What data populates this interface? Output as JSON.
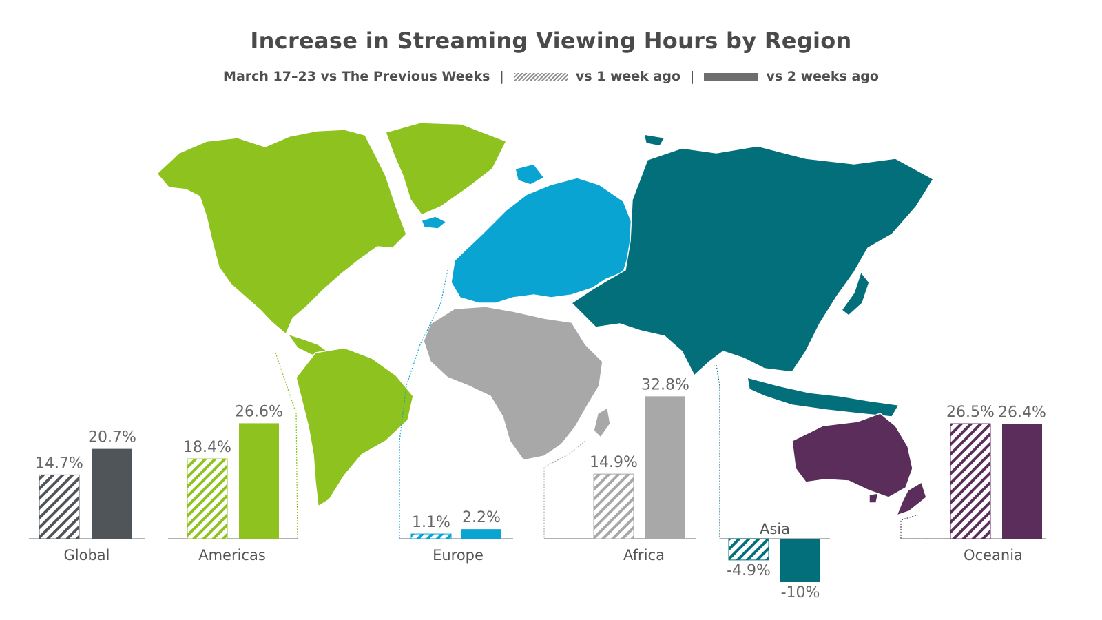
{
  "header": {
    "title": "Increase in Streaming Viewing Hours by Region",
    "subtitle": "March 17–23 vs The Previous Weeks",
    "separator": "|",
    "legend_1wk": "vs 1 week ago",
    "legend_2wk": "vs 2 weeks ago"
  },
  "chart_data": {
    "type": "bar",
    "unit": "%",
    "categories": [
      "Global",
      "Americas",
      "Europe",
      "Africa",
      "Asia",
      "Oceania"
    ],
    "series": [
      {
        "name": "vs 1 week ago",
        "values": [
          14.7,
          18.4,
          1.1,
          14.9,
          -4.9,
          26.5
        ],
        "labels": [
          "14.7%",
          "18.4%",
          "1.1%",
          "14.9%",
          "-4.9%",
          "26.5%"
        ]
      },
      {
        "name": "vs 2 weeks ago",
        "values": [
          20.7,
          26.6,
          2.2,
          32.8,
          -10,
          26.4
        ],
        "labels": [
          "20.7%",
          "26.6%",
          "2.2%",
          "32.8%",
          "-10%",
          "26.4%"
        ]
      }
    ],
    "colors": {
      "Global": "#50555a",
      "Americas": "#8dc21f",
      "Europe": "#0aa4d3",
      "Africa": "#a8a8a8",
      "Asia": "#036f7b",
      "Oceania": "#5a2d5a"
    },
    "legend": "top-center",
    "grid": false
  }
}
